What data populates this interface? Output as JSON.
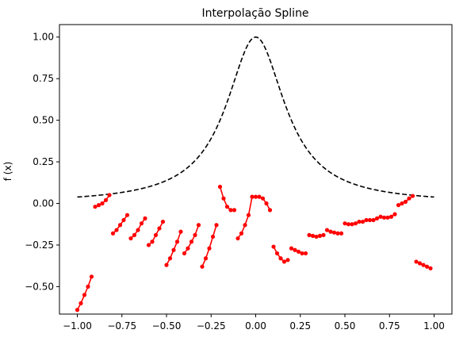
{
  "chart_data": {
    "type": "line",
    "title": "Interpolação Spline",
    "xlabel": "",
    "ylabel": "f (x)",
    "xlim": [
      -1.1,
      1.1
    ],
    "ylim": [
      -0.665,
      1.075
    ],
    "xticks": [
      -1.0,
      -0.75,
      -0.5,
      -0.25,
      0.0,
      0.25,
      0.5,
      0.75,
      1.0
    ],
    "xtick_labels": [
      "−1.00",
      "−0.75",
      "−0.50",
      "−0.25",
      "0.00",
      "0.25",
      "0.50",
      "0.75",
      "1.00"
    ],
    "yticks": [
      -0.5,
      -0.25,
      0.0,
      0.25,
      0.5,
      0.75,
      1.0
    ],
    "ytick_labels": [
      "−0.50",
      "−0.25",
      "0.00",
      "0.25",
      "0.50",
      "0.75",
      "1.00"
    ],
    "grid": false,
    "reference_function": {
      "formula": "1/(1+25x^2)",
      "domain": [
        -1.0,
        1.0
      ],
      "color": "#000000",
      "style": "dashed"
    },
    "spline_color": "#ff0000",
    "spline_segments": [
      {
        "x": [
          -1.0,
          -0.98,
          -0.96,
          -0.94,
          -0.92
        ],
        "y": [
          -0.64,
          -0.6,
          -0.55,
          -0.5,
          -0.44
        ]
      },
      {
        "x": [
          -0.9,
          -0.88,
          -0.86,
          -0.84,
          -0.82
        ],
        "y": [
          -0.02,
          -0.01,
          0.0,
          0.02,
          0.05
        ]
      },
      {
        "x": [
          -0.8,
          -0.78,
          -0.76,
          -0.74,
          -0.72
        ],
        "y": [
          -0.18,
          -0.16,
          -0.13,
          -0.1,
          -0.07
        ]
      },
      {
        "x": [
          -0.7,
          -0.68,
          -0.66,
          -0.64,
          -0.62
        ],
        "y": [
          -0.21,
          -0.19,
          -0.16,
          -0.12,
          -0.09
        ]
      },
      {
        "x": [
          -0.6,
          -0.58,
          -0.56,
          -0.54,
          -0.52
        ],
        "y": [
          -0.25,
          -0.23,
          -0.19,
          -0.15,
          -0.11
        ]
      },
      {
        "x": [
          -0.5,
          -0.48,
          -0.46,
          -0.44,
          -0.42
        ],
        "y": [
          -0.37,
          -0.33,
          -0.28,
          -0.23,
          -0.17
        ]
      },
      {
        "x": [
          -0.4,
          -0.38,
          -0.36,
          -0.34,
          -0.32
        ],
        "y": [
          -0.3,
          -0.27,
          -0.23,
          -0.19,
          -0.13
        ]
      },
      {
        "x": [
          -0.3,
          -0.28,
          -0.26,
          -0.24,
          -0.22
        ],
        "y": [
          -0.38,
          -0.33,
          -0.27,
          -0.2,
          -0.13
        ]
      },
      {
        "x": [
          -0.2,
          -0.18,
          -0.16,
          -0.14,
          -0.12
        ],
        "y": [
          0.1,
          0.03,
          -0.02,
          -0.04,
          -0.04
        ]
      },
      {
        "x": [
          -0.1,
          -0.08,
          -0.06,
          -0.04,
          -0.02
        ],
        "y": [
          -0.21,
          -0.18,
          -0.13,
          -0.07,
          0.04
        ]
      },
      {
        "x": [
          0.0,
          0.02,
          0.04,
          0.06,
          0.08
        ],
        "y": [
          0.04,
          0.04,
          0.03,
          0.0,
          -0.04
        ]
      },
      {
        "x": [
          0.1,
          0.12,
          0.14,
          0.16,
          0.18
        ],
        "y": [
          -0.26,
          -0.3,
          -0.33,
          -0.35,
          -0.34
        ]
      },
      {
        "x": [
          0.2,
          0.22,
          0.24,
          0.26,
          0.28
        ],
        "y": [
          -0.27,
          -0.28,
          -0.29,
          -0.3,
          -0.3
        ]
      },
      {
        "x": [
          0.3,
          0.32,
          0.34,
          0.36,
          0.38
        ],
        "y": [
          -0.19,
          -0.195,
          -0.2,
          -0.195,
          -0.19
        ]
      },
      {
        "x": [
          0.4,
          0.42,
          0.44,
          0.46,
          0.48
        ],
        "y": [
          -0.16,
          -0.17,
          -0.175,
          -0.18,
          -0.18
        ]
      },
      {
        "x": [
          0.5,
          0.52,
          0.54,
          0.56,
          0.58
        ],
        "y": [
          -0.12,
          -0.125,
          -0.125,
          -0.12,
          -0.11
        ]
      },
      {
        "x": [
          0.6,
          0.62,
          0.64,
          0.66,
          0.68
        ],
        "y": [
          -0.11,
          -0.1,
          -0.1,
          -0.1,
          -0.09
        ]
      },
      {
        "x": [
          0.7,
          0.72,
          0.74,
          0.76,
          0.78
        ],
        "y": [
          -0.08,
          -0.085,
          -0.085,
          -0.08,
          -0.065
        ]
      },
      {
        "x": [
          0.8,
          0.82,
          0.84,
          0.86,
          0.88
        ],
        "y": [
          -0.01,
          0.0,
          0.01,
          0.03,
          0.045
        ]
      },
      {
        "x": [
          0.9,
          0.92,
          0.94,
          0.96,
          0.98
        ],
        "y": [
          -0.35,
          -0.36,
          -0.37,
          -0.38,
          -0.39
        ]
      }
    ]
  }
}
